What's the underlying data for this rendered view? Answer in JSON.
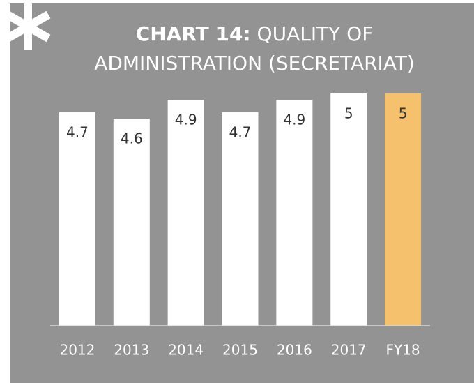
{
  "chart_data": {
    "type": "bar",
    "title_prefix": "CHART 14:",
    "title": "QUALITY OF ADMINISTRATION (SECRETARIAT)",
    "categories": [
      "2012",
      "2013",
      "2014",
      "2015",
      "2016",
      "2017",
      "FY18"
    ],
    "values": [
      4.7,
      4.6,
      4.9,
      4.7,
      4.9,
      5,
      5
    ],
    "colors": [
      "#ffffff",
      "#ffffff",
      "#ffffff",
      "#ffffff",
      "#ffffff",
      "#ffffff",
      "#f5c16c"
    ],
    "ylim": [
      1.3,
      5
    ]
  }
}
